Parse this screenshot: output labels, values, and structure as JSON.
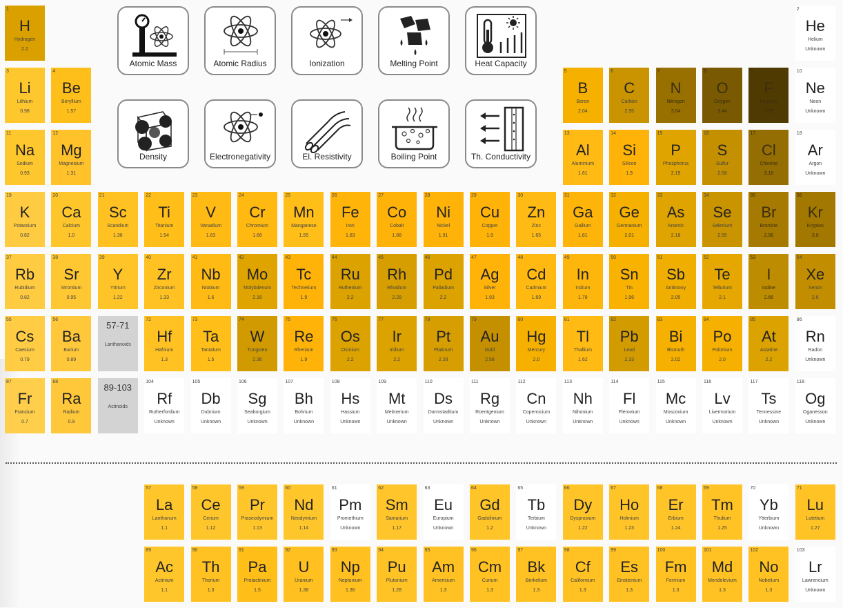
{
  "colors": {
    "blank": "#ffffff",
    "lanthanoid_placeholder": "#d3d3d3"
  },
  "properties": [
    {
      "id": "atomic-mass",
      "label": "Atomic Mass",
      "icon": "scale-atom-icon"
    },
    {
      "id": "atomic-radius",
      "label": "Atomic Radius",
      "icon": "atom-radius-icon"
    },
    {
      "id": "ionization",
      "label": "Ionization",
      "icon": "atom-ionization-icon"
    },
    {
      "id": "melting-point",
      "label": "Melting Point",
      "icon": "melting-cubes-icon"
    },
    {
      "id": "heat-capacity",
      "label": "Heat Capacity",
      "icon": "thermometer-sun-icon"
    },
    {
      "id": "density",
      "label": "Density",
      "icon": "crystal-lattice-icon"
    },
    {
      "id": "electronegativity",
      "label": "Electronegativity",
      "icon": "atom-electron-icon"
    },
    {
      "id": "el-resistivity",
      "label": "El. Resistivity",
      "icon": "cable-icon"
    },
    {
      "id": "boiling-point",
      "label": "Boiling Point",
      "icon": "boiling-pot-icon"
    },
    {
      "id": "th-conductivity",
      "label": "Th. Conductivity",
      "icon": "heat-flow-icon"
    }
  ],
  "placeholders": [
    {
      "range": "57-71",
      "name": "Lanthanoids",
      "row": 6,
      "col": 3
    },
    {
      "range": "89-103",
      "name": "Actinoids",
      "row": 7,
      "col": 3
    }
  ],
  "elements": [
    {
      "n": "1",
      "s": "H",
      "name": "Hydrogen",
      "v": "2.2",
      "c": "#d9a000",
      "row": 1,
      "col": 1
    },
    {
      "n": "2",
      "s": "He",
      "name": "Helium",
      "v": "Unknown",
      "c": "#ffffff",
      "row": 1,
      "col": 18
    },
    {
      "n": "3",
      "s": "Li",
      "name": "Lithium",
      "v": "0.98",
      "c": "#ffc72e",
      "row": 2,
      "col": 1
    },
    {
      "n": "4",
      "s": "Be",
      "name": "Beryllium",
      "v": "1.57",
      "c": "#ffbf1a",
      "row": 2,
      "col": 2
    },
    {
      "n": "5",
      "s": "B",
      "name": "Boron",
      "v": "2.04",
      "c": "#f5b000",
      "row": 2,
      "col": 13
    },
    {
      "n": "6",
      "s": "C",
      "name": "Carbon",
      "v": "2.55",
      "c": "#c99400",
      "row": 2,
      "col": 14
    },
    {
      "n": "7",
      "s": "N",
      "name": "Nitrogen",
      "v": "3.04",
      "c": "#987000",
      "row": 2,
      "col": 15
    },
    {
      "n": "8",
      "s": "O",
      "name": "Oxygen",
      "v": "3.44",
      "c": "#795a02",
      "row": 2,
      "col": 16
    },
    {
      "n": "9",
      "s": "F",
      "name": "Fluorine",
      "v": "3.98",
      "c": "#4f3a02",
      "row": 2,
      "col": 17
    },
    {
      "n": "10",
      "s": "Ne",
      "name": "Neon",
      "v": "Unknown",
      "c": "#ffffff",
      "row": 2,
      "col": 18
    },
    {
      "n": "11",
      "s": "Na",
      "name": "Sodium",
      "v": "0.93",
      "c": "#ffc72e",
      "row": 3,
      "col": 1
    },
    {
      "n": "12",
      "s": "Mg",
      "name": "Magnesium",
      "v": "1.31",
      "c": "#ffc22a",
      "row": 3,
      "col": 2
    },
    {
      "n": "13",
      "s": "Al",
      "name": "Aluminium",
      "v": "1.61",
      "c": "#ffbb14",
      "row": 3,
      "col": 13
    },
    {
      "n": "14",
      "s": "Si",
      "name": "Silicon",
      "v": "1.9",
      "c": "#ffb308",
      "row": 3,
      "col": 14
    },
    {
      "n": "15",
      "s": "P",
      "name": "Phosphorus",
      "v": "2.19",
      "c": "#e0a400",
      "row": 3,
      "col": 15
    },
    {
      "n": "16",
      "s": "S",
      "name": "Sulfur",
      "v": "2.58",
      "c": "#c49000",
      "row": 3,
      "col": 16
    },
    {
      "n": "17",
      "s": "Cl",
      "name": "Chlorine",
      "v": "3.16",
      "c": "#946e02",
      "row": 3,
      "col": 17
    },
    {
      "n": "18",
      "s": "Ar",
      "name": "Argon",
      "v": "Unknown",
      "c": "#ffffff",
      "row": 3,
      "col": 18
    },
    {
      "n": "19",
      "s": "K",
      "name": "Potassium",
      "v": "0.82",
      "c": "#ffcb40",
      "row": 4,
      "col": 1
    },
    {
      "n": "20",
      "s": "Ca",
      "name": "Calcium",
      "v": "1.0",
      "c": "#ffc62c",
      "row": 4,
      "col": 2
    },
    {
      "n": "21",
      "s": "Sc",
      "name": "Scandium",
      "v": "1.36",
      "c": "#ffc222",
      "row": 4,
      "col": 3
    },
    {
      "n": "22",
      "s": "Ti",
      "name": "Titanium",
      "v": "1.54",
      "c": "#ffbe18",
      "row": 4,
      "col": 4
    },
    {
      "n": "23",
      "s": "V",
      "name": "Vanadium",
      "v": "1.63",
      "c": "#ffbb14",
      "row": 4,
      "col": 5
    },
    {
      "n": "24",
      "s": "Cr",
      "name": "Chromium",
      "v": "1.66",
      "c": "#ffb910",
      "row": 4,
      "col": 6
    },
    {
      "n": "25",
      "s": "Mn",
      "name": "Manganese",
      "v": "1.55",
      "c": "#ffbe18",
      "row": 4,
      "col": 7
    },
    {
      "n": "26",
      "s": "Fe",
      "name": "Iron",
      "v": "1.83",
      "c": "#ffb40a",
      "row": 4,
      "col": 8
    },
    {
      "n": "27",
      "s": "Co",
      "name": "Cobalt",
      "v": "1.88",
      "c": "#ffb308",
      "row": 4,
      "col": 9
    },
    {
      "n": "28",
      "s": "Ni",
      "name": "Nickel",
      "v": "1.91",
      "c": "#ffb308",
      "row": 4,
      "col": 10
    },
    {
      "n": "29",
      "s": "Cu",
      "name": "Copper",
      "v": "1.9",
      "c": "#ffb308",
      "row": 4,
      "col": 11
    },
    {
      "n": "30",
      "s": "Zn",
      "name": "Zinc",
      "v": "1.65",
      "c": "#ffbb14",
      "row": 4,
      "col": 12
    },
    {
      "n": "31",
      "s": "Ga",
      "name": "Gallium",
      "v": "1.81",
      "c": "#ffb40a",
      "row": 4,
      "col": 13
    },
    {
      "n": "32",
      "s": "Ge",
      "name": "Germanium",
      "v": "2.01",
      "c": "#f5b000",
      "row": 4,
      "col": 14
    },
    {
      "n": "33",
      "s": "As",
      "name": "Arsenic",
      "v": "2.18",
      "c": "#e0a400",
      "row": 4,
      "col": 15
    },
    {
      "n": "34",
      "s": "Se",
      "name": "Selenium",
      "v": "2.55",
      "c": "#c99400",
      "row": 4,
      "col": 16
    },
    {
      "n": "35",
      "s": "Br",
      "name": "Bromine",
      "v": "2.96",
      "c": "#a67a00",
      "row": 4,
      "col": 17
    },
    {
      "n": "36",
      "s": "Kr",
      "name": "Krypton",
      "v": "3.0",
      "c": "#a37800",
      "row": 4,
      "col": 18
    },
    {
      "n": "37",
      "s": "Rb",
      "name": "Rubidium",
      "v": "0.82",
      "c": "#ffcb40",
      "row": 5,
      "col": 1
    },
    {
      "n": "38",
      "s": "Sr",
      "name": "Strontium",
      "v": "0.95",
      "c": "#ffc732",
      "row": 5,
      "col": 2
    },
    {
      "n": "39",
      "s": "Y",
      "name": "Yttrium",
      "v": "1.22",
      "c": "#ffc428",
      "row": 5,
      "col": 3
    },
    {
      "n": "40",
      "s": "Zr",
      "name": "Zirconium",
      "v": "1.33",
      "c": "#ffc222",
      "row": 5,
      "col": 4
    },
    {
      "n": "41",
      "s": "Nb",
      "name": "Niobium",
      "v": "1.6",
      "c": "#ffbb14",
      "row": 5,
      "col": 5
    },
    {
      "n": "42",
      "s": "Mo",
      "name": "Molybdenum",
      "v": "2.16",
      "c": "#e0a400",
      "row": 5,
      "col": 6
    },
    {
      "n": "43",
      "s": "Tc",
      "name": "Technetium",
      "v": "1.9",
      "c": "#ffb308",
      "row": 5,
      "col": 7
    },
    {
      "n": "44",
      "s": "Ru",
      "name": "Ruthenium",
      "v": "2.2",
      "c": "#dca200",
      "row": 5,
      "col": 8
    },
    {
      "n": "45",
      "s": "Rh",
      "name": "Rhodium",
      "v": "2.28",
      "c": "#d69e00",
      "row": 5,
      "col": 9
    },
    {
      "n": "46",
      "s": "Pd",
      "name": "Palladium",
      "v": "2.2",
      "c": "#dca200",
      "row": 5,
      "col": 10
    },
    {
      "n": "47",
      "s": "Ag",
      "name": "Silver",
      "v": "1.93",
      "c": "#ffb308",
      "row": 5,
      "col": 11
    },
    {
      "n": "48",
      "s": "Cd",
      "name": "Cadmium",
      "v": "1.69",
      "c": "#ffb910",
      "row": 5,
      "col": 12
    },
    {
      "n": "49",
      "s": "In",
      "name": "Indium",
      "v": "1.78",
      "c": "#ffb60c",
      "row": 5,
      "col": 13
    },
    {
      "n": "50",
      "s": "Sn",
      "name": "Tin",
      "v": "1.96",
      "c": "#fab200",
      "row": 5,
      "col": 14
    },
    {
      "n": "51",
      "s": "Sb",
      "name": "Antimony",
      "v": "2.05",
      "c": "#f0ae00",
      "row": 5,
      "col": 15
    },
    {
      "n": "52",
      "s": "Te",
      "name": "Tellurium",
      "v": "2.1",
      "c": "#e6a800",
      "row": 5,
      "col": 16
    },
    {
      "n": "53",
      "s": "I",
      "name": "Iodine",
      "v": "2.66",
      "c": "#bd8c00",
      "row": 5,
      "col": 17
    },
    {
      "n": "54",
      "s": "Xe",
      "name": "Xenon",
      "v": "2.6",
      "c": "#c28e00",
      "row": 5,
      "col": 18
    },
    {
      "n": "55",
      "s": "Cs",
      "name": "Caesium",
      "v": "0.79",
      "c": "#ffcc44",
      "row": 6,
      "col": 1
    },
    {
      "n": "56",
      "s": "Ba",
      "name": "Barium",
      "v": "0.89",
      "c": "#ffc83a",
      "row": 6,
      "col": 2
    },
    {
      "n": "72",
      "s": "Hf",
      "name": "Hafnium",
      "v": "1.3",
      "c": "#ffc222",
      "row": 6,
      "col": 4
    },
    {
      "n": "73",
      "s": "Ta",
      "name": "Tantalum",
      "v": "1.5",
      "c": "#ffbe18",
      "row": 6,
      "col": 5
    },
    {
      "n": "74",
      "s": "W",
      "name": "Tungsten",
      "v": "2.36",
      "c": "#d09a00",
      "row": 6,
      "col": 6
    },
    {
      "n": "75",
      "s": "Re",
      "name": "Rhenium",
      "v": "1.9",
      "c": "#ffb308",
      "row": 6,
      "col": 7
    },
    {
      "n": "76",
      "s": "Os",
      "name": "Osmium",
      "v": "2.2",
      "c": "#dca200",
      "row": 6,
      "col": 8
    },
    {
      "n": "77",
      "s": "Ir",
      "name": "Iridium",
      "v": "2.2",
      "c": "#dca200",
      "row": 6,
      "col": 9
    },
    {
      "n": "78",
      "s": "Pt",
      "name": "Platinum",
      "v": "2.28",
      "c": "#d69e00",
      "row": 6,
      "col": 10
    },
    {
      "n": "79",
      "s": "Au",
      "name": "Gold",
      "v": "2.58",
      "c": "#c49000",
      "row": 6,
      "col": 11
    },
    {
      "n": "80",
      "s": "Hg",
      "name": "Mercury",
      "v": "2.0",
      "c": "#f5b000",
      "row": 6,
      "col": 12
    },
    {
      "n": "81",
      "s": "Tl",
      "name": "Thallium",
      "v": "1.62",
      "c": "#ffbb14",
      "row": 6,
      "col": 13
    },
    {
      "n": "82",
      "s": "Pb",
      "name": "Lead",
      "v": "2.33",
      "c": "#d29c00",
      "row": 6,
      "col": 14
    },
    {
      "n": "83",
      "s": "Bi",
      "name": "Bismuth",
      "v": "2.02",
      "c": "#f5b000",
      "row": 6,
      "col": 15
    },
    {
      "n": "84",
      "s": "Po",
      "name": "Polonium",
      "v": "2.0",
      "c": "#f5b000",
      "row": 6,
      "col": 16
    },
    {
      "n": "85",
      "s": "At",
      "name": "Astatine",
      "v": "2.2",
      "c": "#dca200",
      "row": 6,
      "col": 17
    },
    {
      "n": "86",
      "s": "Rn",
      "name": "Radon",
      "v": "Unknown",
      "c": "#ffffff",
      "row": 6,
      "col": 18
    },
    {
      "n": "87",
      "s": "Fr",
      "name": "Francium",
      "v": "0.7",
      "c": "#ffcf4c",
      "row": 7,
      "col": 1
    },
    {
      "n": "88",
      "s": "Ra",
      "name": "Radium",
      "v": "0.9",
      "c": "#ffc83a",
      "row": 7,
      "col": 2
    },
    {
      "n": "104",
      "s": "Rf",
      "name": "Rutherfordium",
      "v": "Unknown",
      "c": "#ffffff",
      "row": 7,
      "col": 4
    },
    {
      "n": "105",
      "s": "Db",
      "name": "Dubnium",
      "v": "Unknown",
      "c": "#ffffff",
      "row": 7,
      "col": 5
    },
    {
      "n": "106",
      "s": "Sg",
      "name": "Seaborgium",
      "v": "Unknown",
      "c": "#ffffff",
      "row": 7,
      "col": 6
    },
    {
      "n": "107",
      "s": "Bh",
      "name": "Bohrium",
      "v": "Unknown",
      "c": "#ffffff",
      "row": 7,
      "col": 7
    },
    {
      "n": "108",
      "s": "Hs",
      "name": "Hassium",
      "v": "Unknown",
      "c": "#ffffff",
      "row": 7,
      "col": 8
    },
    {
      "n": "109",
      "s": "Mt",
      "name": "Meitnerium",
      "v": "Unknown",
      "c": "#ffffff",
      "row": 7,
      "col": 9
    },
    {
      "n": "110",
      "s": "Ds",
      "name": "Darmstadtium",
      "v": "Unknown",
      "c": "#ffffff",
      "row": 7,
      "col": 10
    },
    {
      "n": "111",
      "s": "Rg",
      "name": "Roentgenium",
      "v": "Unknown",
      "c": "#ffffff",
      "row": 7,
      "col": 11
    },
    {
      "n": "112",
      "s": "Cn",
      "name": "Copernicium",
      "v": "Unknown",
      "c": "#ffffff",
      "row": 7,
      "col": 12
    },
    {
      "n": "113",
      "s": "Nh",
      "name": "Nihonium",
      "v": "Unknown",
      "c": "#ffffff",
      "row": 7,
      "col": 13
    },
    {
      "n": "114",
      "s": "Fl",
      "name": "Flerovium",
      "v": "Unknown",
      "c": "#ffffff",
      "row": 7,
      "col": 14
    },
    {
      "n": "115",
      "s": "Mc",
      "name": "Moscovium",
      "v": "Unknown",
      "c": "#ffffff",
      "row": 7,
      "col": 15
    },
    {
      "n": "116",
      "s": "Lv",
      "name": "Livermorium",
      "v": "Unknown",
      "c": "#ffffff",
      "row": 7,
      "col": 16
    },
    {
      "n": "117",
      "s": "Ts",
      "name": "Tennessine",
      "v": "Unknown",
      "c": "#ffffff",
      "row": 7,
      "col": 17
    },
    {
      "n": "118",
      "s": "Og",
      "name": "Oganesson",
      "v": "Unknown",
      "c": "#ffffff",
      "row": 7,
      "col": 18
    },
    {
      "n": "57",
      "s": "La",
      "name": "Lanthanum",
      "v": "1.1",
      "c": "#ffc62c",
      "row": 9,
      "col": 4
    },
    {
      "n": "58",
      "s": "Ce",
      "name": "Cerium",
      "v": "1.12",
      "c": "#ffc62c",
      "row": 9,
      "col": 5
    },
    {
      "n": "59",
      "s": "Pr",
      "name": "Praseodymium",
      "v": "1.13",
      "c": "#ffc62c",
      "row": 9,
      "col": 6
    },
    {
      "n": "60",
      "s": "Nd",
      "name": "Neodymium",
      "v": "1.14",
      "c": "#ffc62c",
      "row": 9,
      "col": 7
    },
    {
      "n": "61",
      "s": "Pm",
      "name": "Promethium",
      "v": "Unknown",
      "c": "#ffffff",
      "row": 9,
      "col": 8
    },
    {
      "n": "62",
      "s": "Sm",
      "name": "Samarium",
      "v": "1.17",
      "c": "#ffc52a",
      "row": 9,
      "col": 9
    },
    {
      "n": "63",
      "s": "Eu",
      "name": "Europium",
      "v": "Unknown",
      "c": "#ffffff",
      "row": 9,
      "col": 10
    },
    {
      "n": "64",
      "s": "Gd",
      "name": "Gadolinium",
      "v": "1.2",
      "c": "#ffc428",
      "row": 9,
      "col": 11
    },
    {
      "n": "65",
      "s": "Tb",
      "name": "Terbium",
      "v": "Unknown",
      "c": "#ffffff",
      "row": 9,
      "col": 12
    },
    {
      "n": "66",
      "s": "Dy",
      "name": "Dysprosium",
      "v": "1.22",
      "c": "#ffc428",
      "row": 9,
      "col": 13
    },
    {
      "n": "67",
      "s": "Ho",
      "name": "Holmium",
      "v": "1.23",
      "c": "#ffc428",
      "row": 9,
      "col": 14
    },
    {
      "n": "68",
      "s": "Er",
      "name": "Erbium",
      "v": "1.24",
      "c": "#ffc428",
      "row": 9,
      "col": 15
    },
    {
      "n": "69",
      "s": "Tm",
      "name": "Thulium",
      "v": "1.25",
      "c": "#ffc326",
      "row": 9,
      "col": 16
    },
    {
      "n": "70",
      "s": "Yb",
      "name": "Ytterbium",
      "v": "Unknown",
      "c": "#ffffff",
      "row": 9,
      "col": 17
    },
    {
      "n": "71",
      "s": "Lu",
      "name": "Lutetium",
      "v": "1.27",
      "c": "#ffc326",
      "row": 9,
      "col": 18
    },
    {
      "n": "89",
      "s": "Ac",
      "name": "Actinium",
      "v": "1.1",
      "c": "#ffc62c",
      "row": 10,
      "col": 4
    },
    {
      "n": "90",
      "s": "Th",
      "name": "Thorium",
      "v": "1.3",
      "c": "#ffc222",
      "row": 10,
      "col": 5
    },
    {
      "n": "91",
      "s": "Pa",
      "name": "Protactinium",
      "v": "1.5",
      "c": "#ffbe18",
      "row": 10,
      "col": 6
    },
    {
      "n": "92",
      "s": "U",
      "name": "Uranium",
      "v": "1.38",
      "c": "#ffc020",
      "row": 10,
      "col": 7
    },
    {
      "n": "93",
      "s": "Np",
      "name": "Neptunium",
      "v": "1.36",
      "c": "#ffc020",
      "row": 10,
      "col": 8
    },
    {
      "n": "94",
      "s": "Pu",
      "name": "Plutonium",
      "v": "1.28",
      "c": "#ffc326",
      "row": 10,
      "col": 9
    },
    {
      "n": "95",
      "s": "Am",
      "name": "Americium",
      "v": "1.3",
      "c": "#ffc222",
      "row": 10,
      "col": 10
    },
    {
      "n": "96",
      "s": "Cm",
      "name": "Curium",
      "v": "1.3",
      "c": "#ffc222",
      "row": 10,
      "col": 11
    },
    {
      "n": "97",
      "s": "Bk",
      "name": "Berkelium",
      "v": "1.3",
      "c": "#ffc222",
      "row": 10,
      "col": 12
    },
    {
      "n": "98",
      "s": "Cf",
      "name": "Californium",
      "v": "1.3",
      "c": "#ffc222",
      "row": 10,
      "col": 13
    },
    {
      "n": "99",
      "s": "Es",
      "name": "Einsteinium",
      "v": "1.3",
      "c": "#ffc222",
      "row": 10,
      "col": 14
    },
    {
      "n": "100",
      "s": "Fm",
      "name": "Fermium",
      "v": "1.3",
      "c": "#ffc222",
      "row": 10,
      "col": 15
    },
    {
      "n": "101",
      "s": "Md",
      "name": "Mendelevium",
      "v": "1.3",
      "c": "#ffc222",
      "row": 10,
      "col": 16
    },
    {
      "n": "102",
      "s": "No",
      "name": "Nobelium",
      "v": "1.3",
      "c": "#ffc222",
      "row": 10,
      "col": 17
    },
    {
      "n": "103",
      "s": "Lr",
      "name": "Lawrencium",
      "v": "Unknown",
      "c": "#ffffff",
      "row": 10,
      "col": 18
    }
  ]
}
